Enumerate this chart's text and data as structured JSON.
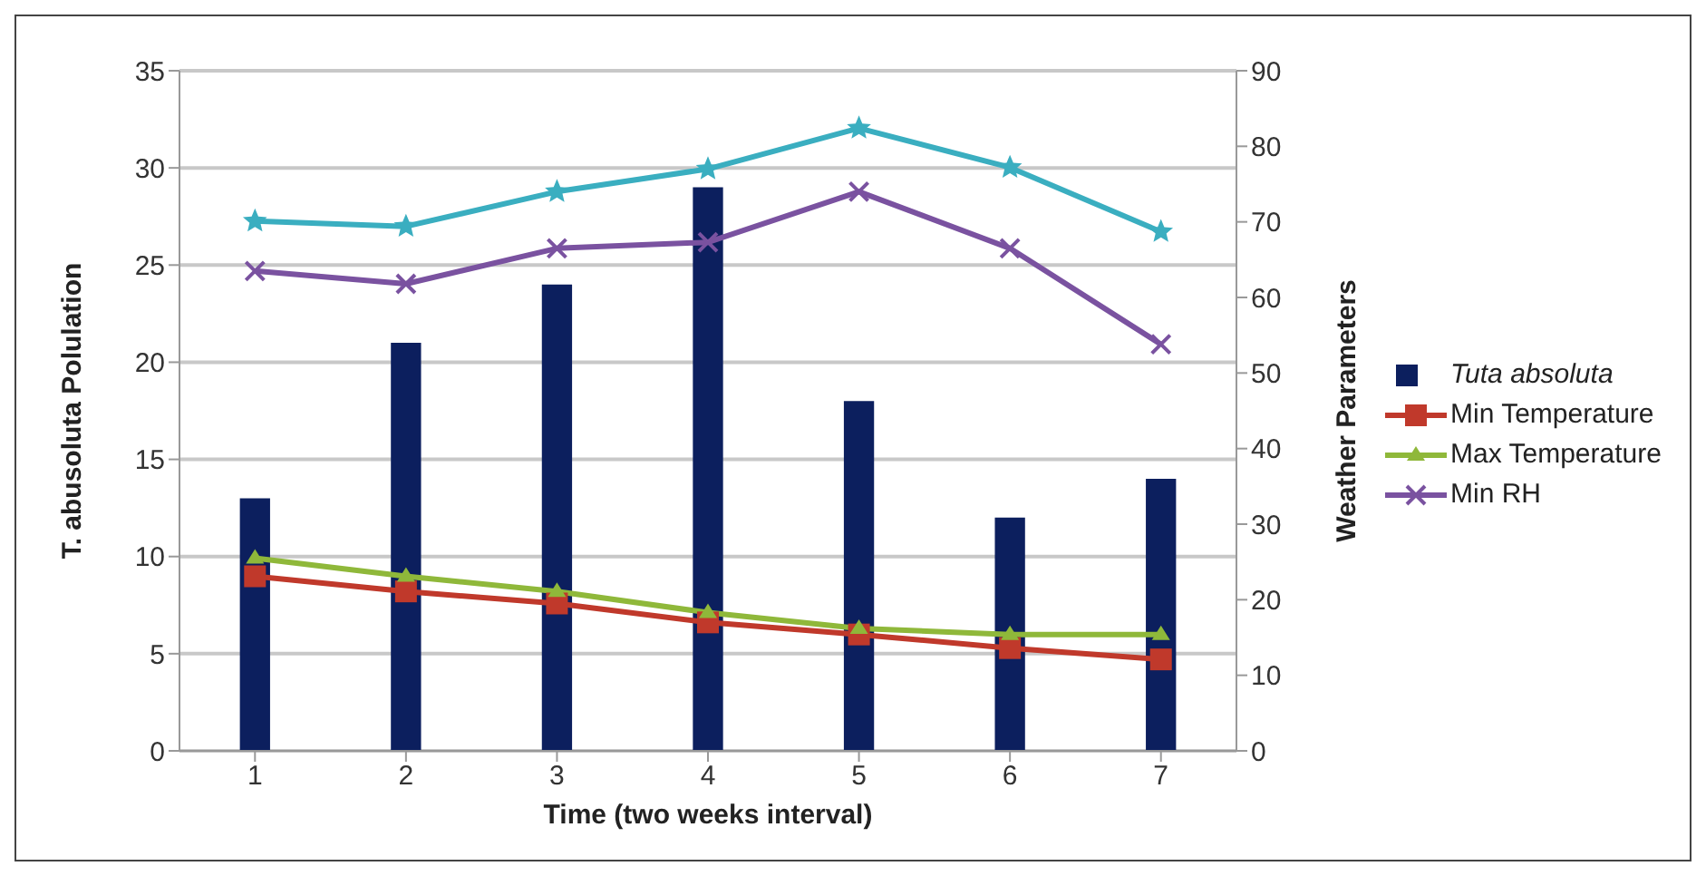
{
  "chart_data": {
    "type": "bar",
    "xlabel": "Time (two weeks interval)",
    "ylabel": "T. abusoluta Polulation",
    "y2label": "Weather Parameters",
    "categories": [
      "1",
      "2",
      "3",
      "4",
      "5",
      "6",
      "7"
    ],
    "series": [
      {
        "name": "Tuta absoluta",
        "color": "#0c1f5e",
        "values": [
          13,
          21,
          24,
          29,
          18,
          12,
          14
        ]
      },
      {
        "name": "Min Temperature",
        "type": "line",
        "axis": "y2",
        "color": "#c0392b",
        "marker": "square",
        "values": [
          23.1,
          21.1,
          19.5,
          17,
          15.4,
          13.6,
          12.1
        ]
      },
      {
        "name": "Max Temperature",
        "type": "line",
        "axis": "y2",
        "color": "#8fb83a",
        "marker": "triangle",
        "values": [
          25.5,
          23.1,
          21.1,
          18.3,
          16.2,
          15.4,
          15.4
        ]
      },
      {
        "name": "Min RH",
        "type": "line",
        "axis": "y2",
        "color": "#7a52a0",
        "marker": "cross",
        "values": [
          63.5,
          61.8,
          66.5,
          67.3,
          74,
          66.5,
          53.8
        ]
      },
      {
        "type": "line",
        "axis": "y2",
        "color": "#3aaec0",
        "marker": "star",
        "values": [
          70.1,
          69.4,
          74,
          77,
          82.4,
          77.2,
          68.7
        ]
      }
    ],
    "ylim": [
      0,
      35
    ],
    "yticks": [
      0,
      5,
      10,
      15,
      20,
      25,
      30,
      35
    ],
    "y2lim": [
      0,
      90
    ],
    "y2ticks": [
      0,
      10,
      20,
      30,
      40,
      50,
      60,
      70,
      80,
      90
    ],
    "grid": "y",
    "legend": "right"
  }
}
